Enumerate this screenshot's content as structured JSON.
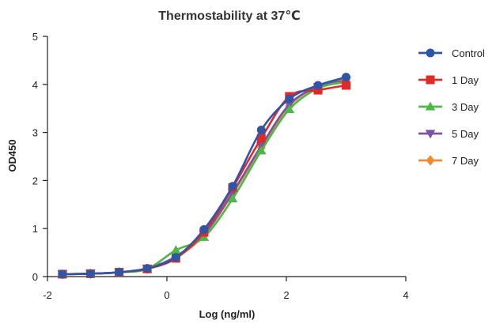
{
  "chart_data": {
    "type": "line",
    "title": "Thermostability at 37℃",
    "xlabel": "Log (ng/ml)",
    "ylabel": "OD450",
    "xlim": [
      -2,
      4
    ],
    "ylim": [
      0,
      5
    ],
    "xticks": [
      -2,
      0,
      2,
      4
    ],
    "yticks": [
      0,
      1,
      2,
      3,
      4,
      5
    ],
    "grid": false,
    "legend_position": "right",
    "x": [
      -1.75,
      -1.28,
      -0.8,
      -0.33,
      0.15,
      0.62,
      1.1,
      1.58,
      2.05,
      2.53,
      3.0
    ],
    "series": [
      {
        "name": "Control",
        "color": "#2f55a4",
        "marker": "circle",
        "values": [
          0.05,
          0.06,
          0.09,
          0.17,
          0.4,
          0.98,
          1.88,
          3.05,
          3.7,
          3.98,
          4.15
        ]
      },
      {
        "name": "1 Day",
        "color": "#e02a2a",
        "marker": "square",
        "values": [
          0.05,
          0.06,
          0.09,
          0.16,
          0.38,
          0.92,
          1.85,
          2.88,
          3.75,
          3.88,
          3.98
        ]
      },
      {
        "name": "3 Day",
        "color": "#4db848",
        "marker": "triangle-up",
        "values": [
          0.05,
          0.06,
          0.09,
          0.16,
          0.55,
          0.82,
          1.62,
          2.62,
          3.48,
          3.92,
          4.05
        ]
      },
      {
        "name": "5 Day",
        "color": "#7b52a8",
        "marker": "triangle-down",
        "values": [
          0.05,
          0.06,
          0.09,
          0.17,
          0.42,
          0.88,
          1.75,
          2.72,
          3.58,
          3.95,
          4.08
        ]
      },
      {
        "name": "7 Day",
        "color": "#f08a30",
        "marker": "diamond",
        "values": [
          0.05,
          0.06,
          0.09,
          0.16,
          0.4,
          0.86,
          1.72,
          2.68,
          3.55,
          3.96,
          4.1
        ]
      }
    ]
  }
}
